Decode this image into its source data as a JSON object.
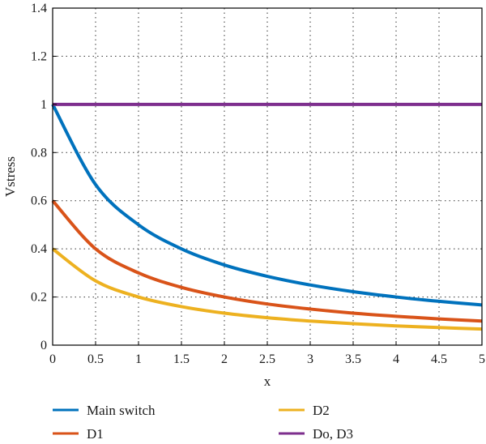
{
  "chart_data": {
    "type": "line",
    "xlabel": "x",
    "ylabel": "Vstress",
    "xlim": [
      0,
      5
    ],
    "ylim": [
      0,
      1.4
    ],
    "xticks": [
      "0",
      "0.5",
      "1",
      "1.5",
      "2",
      "2.5",
      "3",
      "3.5",
      "4",
      "4.5",
      "5"
    ],
    "yticks": [
      "0",
      "0.2",
      "0.4",
      "0.6",
      "0.8",
      "1",
      "1.2",
      "1.4"
    ],
    "grid": true,
    "legend_position": "bottom",
    "series": [
      {
        "name": "Main switch",
        "color": "#0072BD",
        "x": [
          0,
          0.5,
          1,
          1.5,
          2,
          2.5,
          3,
          3.5,
          4,
          4.5,
          5
        ],
        "y": [
          1.0,
          0.667,
          0.5,
          0.4,
          0.333,
          0.286,
          0.25,
          0.222,
          0.2,
          0.182,
          0.167
        ]
      },
      {
        "name": "D1",
        "color": "#D95319",
        "x": [
          0,
          0.5,
          1,
          1.5,
          2,
          2.5,
          3,
          3.5,
          4,
          4.5,
          5
        ],
        "y": [
          0.6,
          0.4,
          0.3,
          0.24,
          0.2,
          0.171,
          0.15,
          0.133,
          0.12,
          0.109,
          0.1
        ]
      },
      {
        "name": "D2",
        "color": "#EDB120",
        "x": [
          0,
          0.5,
          1,
          1.5,
          2,
          2.5,
          3,
          3.5,
          4,
          4.5,
          5
        ],
        "y": [
          0.4,
          0.267,
          0.2,
          0.16,
          0.133,
          0.114,
          0.1,
          0.089,
          0.08,
          0.073,
          0.067
        ]
      },
      {
        "name": "Do, D3",
        "color": "#7E2F8E",
        "x": [
          0,
          0.5,
          1,
          1.5,
          2,
          2.5,
          3,
          3.5,
          4,
          4.5,
          5
        ],
        "y": [
          1,
          1,
          1,
          1,
          1,
          1,
          1,
          1,
          1,
          1,
          1
        ]
      }
    ]
  }
}
